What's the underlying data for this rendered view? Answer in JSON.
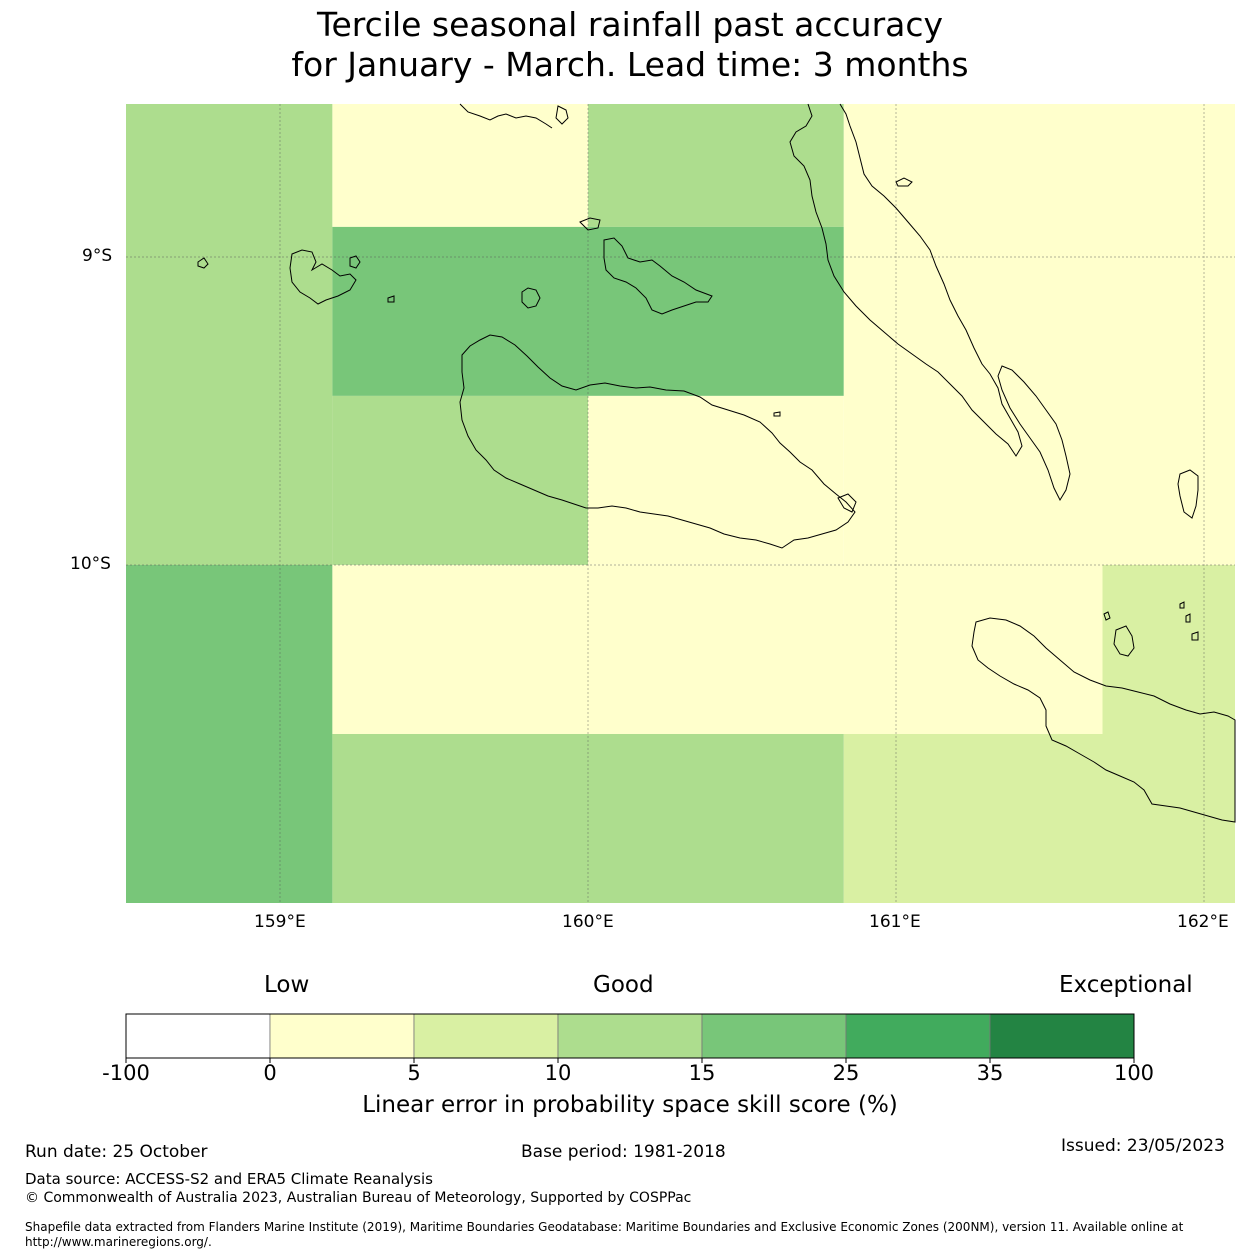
{
  "title": {
    "line1": "Tercile seasonal rainfall past accuracy",
    "line2": "for January - March. Lead time: 3 months"
  },
  "map": {
    "x_ticks": [
      "159°E",
      "160°E",
      "161°E",
      "162°E"
    ],
    "y_ticks": [
      "9°S",
      "10°S"
    ],
    "grid_cells": [
      {
        "lon": [
          158.5,
          159.17
        ],
        "lat": [
          -8.5,
          -10.0
        ],
        "category": "10 to 15"
      },
      {
        "lon": [
          159.17,
          160.0
        ],
        "lat": [
          -8.5,
          -8.9
        ],
        "category": "0 to 5"
      },
      {
        "lon": [
          160.0,
          160.83
        ],
        "lat": [
          -8.5,
          -8.9
        ],
        "category": "10 to 15"
      },
      {
        "lon": [
          159.17,
          160.83
        ],
        "lat": [
          -8.9,
          -9.45
        ],
        "category": "15 to 25"
      },
      {
        "lon": [
          159.17,
          160.0
        ],
        "lat": [
          -9.45,
          -10.0
        ],
        "category": "10 to 15"
      },
      {
        "lon": [
          160.0,
          160.83
        ],
        "lat": [
          -9.45,
          -10.0
        ],
        "category": "0 to 5"
      },
      {
        "lon": [
          160.83,
          162.1
        ],
        "lat": [
          -8.5,
          -10.0
        ],
        "category": "0 to 5"
      },
      {
        "lon": [
          158.5,
          159.17
        ],
        "lat": [
          -10.0,
          -11.1
        ],
        "category": "15 to 25"
      },
      {
        "lon": [
          159.17,
          161.67
        ],
        "lat": [
          -10.0,
          -10.55
        ],
        "category": "0 to 5"
      },
      {
        "lon": [
          161.67,
          162.1
        ],
        "lat": [
          -10.0,
          -10.55
        ],
        "category": "5 to 10"
      },
      {
        "lon": [
          159.17,
          160.83
        ],
        "lat": [
          -10.55,
          -11.1
        ],
        "category": "10 to 15"
      },
      {
        "lon": [
          160.83,
          162.1
        ],
        "lat": [
          -10.55,
          -11.1
        ],
        "category": "5 to 10"
      }
    ]
  },
  "colorbar": {
    "words": {
      "low": "Low",
      "good": "Good",
      "exceptional": "Exceptional"
    },
    "bins": [
      {
        "range": "-100 to 0",
        "color": "#ffffff"
      },
      {
        "range": "0 to 5",
        "color": "#ffffcc"
      },
      {
        "range": "5 to 10",
        "color": "#d9f0a3"
      },
      {
        "range": "10 to 15",
        "color": "#addd8e"
      },
      {
        "range": "15 to 25",
        "color": "#78c679"
      },
      {
        "range": "25 to 35",
        "color": "#41ab5d"
      },
      {
        "range": "35 to 100",
        "color": "#238443"
      }
    ],
    "ticks": [
      "-100",
      "0",
      "5",
      "10",
      "15",
      "25",
      "35",
      "100"
    ],
    "label": "Linear error in probability space skill score (%)"
  },
  "footer": {
    "run_date": "Run date: 25 October",
    "base_period": "Base period: 1981-2018",
    "issued": "Issued: 23/05/2023",
    "data_source": "Data source: ACCESS-S2 and ERA5 Climate Reanalysis",
    "copyright": "© Commonwealth of Australia 2023, Australian Bureau of Meteorology, Supported by COSPPac",
    "shapefile": "Shapefile data extracted from Flanders Marine Institute (2019), Maritime Boundaries Geodatabase: Maritime Boundaries and Exclusive Economic Zones (200NM), version 11. Available online at http://www.marineregions.org/."
  }
}
